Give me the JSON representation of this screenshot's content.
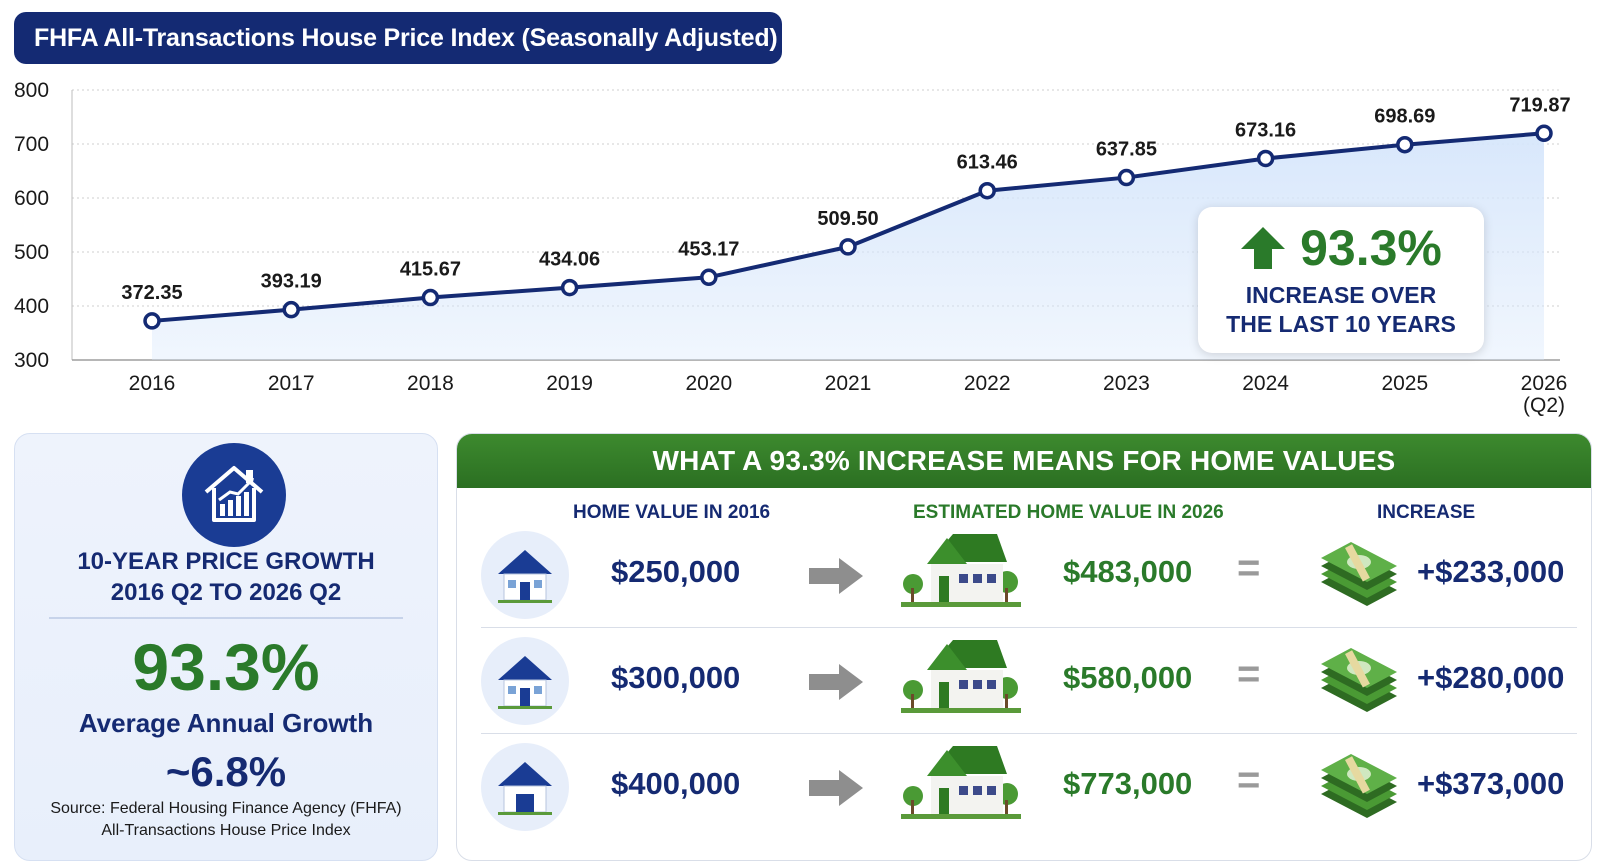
{
  "chart_data": {
    "type": "line",
    "title": "FHFA All-Transactions House Price Index (Seasonally Adjusted)",
    "categories": [
      "2016",
      "2017",
      "2018",
      "2019",
      "2020",
      "2021",
      "2022",
      "2023",
      "2024",
      "2025",
      "2026"
    ],
    "category_sublabels": [
      "",
      "",
      "",
      "",
      "",
      "",
      "",
      "",
      "",
      "",
      "(Q2)"
    ],
    "values": [
      372.35,
      393.19,
      415.67,
      434.06,
      453.17,
      509.5,
      613.46,
      637.85,
      673.16,
      698.69,
      719.87
    ],
    "value_labels": [
      "372.35",
      "393.19",
      "415.67",
      "434.06",
      "453.17",
      "509.50",
      "613.46",
      "637.85",
      "673.16",
      "698.69",
      "719.87"
    ],
    "ylim": [
      300,
      800
    ],
    "yticks": [
      "300",
      "400",
      "500",
      "600",
      "700",
      "800"
    ],
    "grid": true,
    "line_color": "#142a73",
    "fill_color": "#d6e6fb"
  },
  "callout": {
    "percent": "93.3%",
    "line1": "INCREASE OVER",
    "line2": "THE LAST 10 YEARS",
    "icon": "up-arrow-icon"
  },
  "summary": {
    "icon": "house-growth-icon",
    "title_line1": "10-YEAR PRICE GROWTH",
    "title_line2": "2016 Q2 TO 2026 Q2",
    "percent": "93.3%",
    "avg_label": "Average Annual Growth",
    "avg_value": "~6.8%",
    "source_line1": "Source: Federal Housing Finance Agency (FHFA)",
    "source_line2": "All-Transactions House Price Index"
  },
  "home_values": {
    "header": "WHAT  A 93.3% INCREASE MEANS FOR HOME VALUES",
    "col1": "HOME VALUE IN 2016",
    "col2": "ESTIMATED HOME VALUE IN 2026",
    "col3": "INCREASE",
    "rows": [
      {
        "v2016": "$250,000",
        "v2026": "$483,000",
        "eq": "=",
        "increase": "+$233,000"
      },
      {
        "v2016": "$300,000",
        "v2026": "$580,000",
        "eq": "=",
        "increase": "+$280,000"
      },
      {
        "v2016": "$400,000",
        "v2026": "$773,000",
        "eq": "=",
        "increase": "+$373,000"
      }
    ]
  },
  "colors": {
    "navy": "#142a73",
    "green": "#2a7a2a",
    "header_green": "#3d8a2e"
  }
}
